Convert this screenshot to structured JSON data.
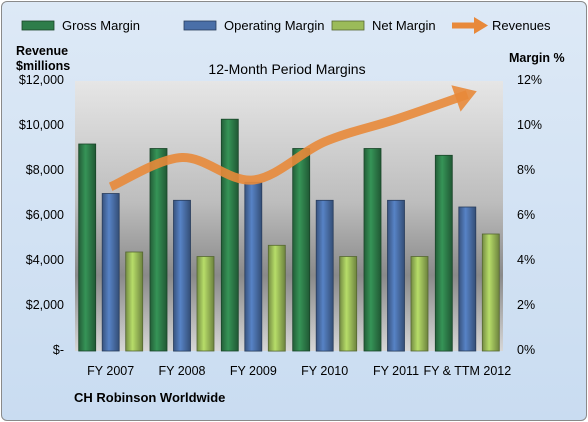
{
  "chart_data": {
    "type": "bar",
    "title": "12-Month Period Margins",
    "company": "CH Robinson Worldwide",
    "left_axis": {
      "title_line1": "Revenue",
      "title_line2": "$millions",
      "range": [
        0,
        12000
      ],
      "ticks": [
        "$-",
        "$2,000",
        "$4,000",
        "$6,000",
        "$8,000",
        "$10,000",
        "$12,000"
      ]
    },
    "right_axis": {
      "title": "Margin %",
      "range": [
        0,
        12
      ],
      "ticks": [
        "0%",
        "2%",
        "4%",
        "6%",
        "8%",
        "10%",
        "12%"
      ]
    },
    "categories": [
      "FY 2007",
      "FY 2008",
      "FY 2009",
      "FY 2010",
      "FY 2011",
      "FY & TTM 2012"
    ],
    "series": [
      {
        "name": "Gross Margin",
        "axis": "right",
        "type": "bar",
        "color": "#2e7d4a",
        "values": [
          9.2,
          9.0,
          10.3,
          9.0,
          9.0,
          8.7
        ]
      },
      {
        "name": "Operating Margin",
        "axis": "right",
        "type": "bar",
        "color": "#4a6fa8",
        "values": [
          7.0,
          6.7,
          7.5,
          6.7,
          6.7,
          6.4
        ]
      },
      {
        "name": "Net Margin",
        "axis": "right",
        "type": "bar",
        "color": "#9bbb59",
        "values": [
          4.4,
          4.2,
          4.7,
          4.2,
          4.2,
          5.2
        ]
      },
      {
        "name": "Revenues",
        "axis": "left",
        "type": "line",
        "color": "#e8893a",
        "values": [
          7300,
          8600,
          7600,
          9300,
          10300,
          11400
        ]
      }
    ],
    "legend_position": "top",
    "grid": false
  }
}
